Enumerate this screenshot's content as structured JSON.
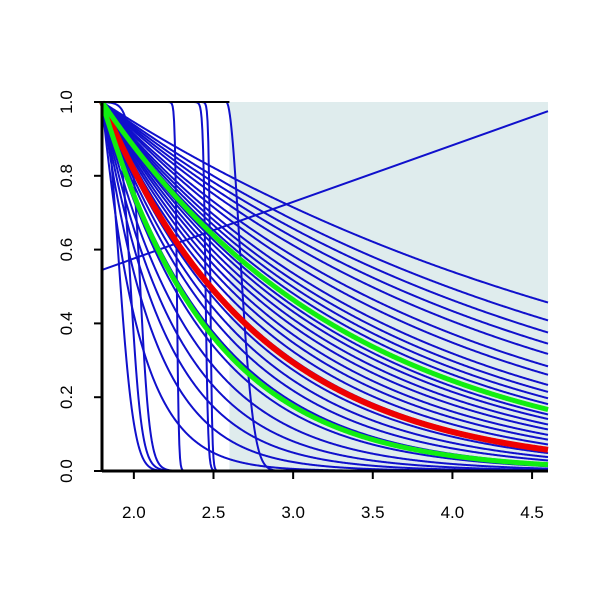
{
  "chart_data": {
    "type": "line",
    "title": "",
    "xlabel": "",
    "ylabel": "",
    "xlim": [
      1.8,
      4.6
    ],
    "ylim": [
      0.0,
      1.0
    ],
    "x_ticks": [
      "2.0",
      "2.5",
      "3.0",
      "3.5",
      "4.0",
      "4.5"
    ],
    "y_ticks": [
      "0.0",
      "0.2",
      "0.4",
      "0.6",
      "0.8",
      "1.0"
    ],
    "shaded_region": {
      "x_start": 2.6,
      "x_end": 4.6,
      "color": "#dfeced"
    },
    "colors": {
      "blue": "#1010cc",
      "red": "#ee0000",
      "green": "#11ee11",
      "axis": "#000000"
    },
    "series": [
      {
        "color": "blue",
        "kind": "exp",
        "x0": 1.8,
        "v": 0.28
      },
      {
        "color": "blue",
        "kind": "exp",
        "x0": 1.8,
        "v": 0.32
      },
      {
        "color": "blue",
        "kind": "exp",
        "x0": 1.8,
        "v": 0.35
      },
      {
        "color": "blue",
        "kind": "exp",
        "x0": 1.8,
        "v": 0.38
      },
      {
        "color": "blue",
        "kind": "exp",
        "x0": 1.8,
        "v": 0.41
      },
      {
        "color": "blue",
        "kind": "exp",
        "x0": 1.8,
        "v": 0.45
      },
      {
        "color": "blue",
        "kind": "exp",
        "x0": 1.8,
        "v": 0.48
      },
      {
        "color": "blue",
        "kind": "exp",
        "x0": 1.8,
        "v": 0.52
      },
      {
        "color": "blue",
        "kind": "exp",
        "x0": 1.8,
        "v": 0.55
      },
      {
        "color": "blue",
        "kind": "exp",
        "x0": 1.8,
        "v": 0.58
      },
      {
        "color": "blue",
        "kind": "exp",
        "x0": 1.8,
        "v": 0.61
      },
      {
        "color": "blue",
        "kind": "exp",
        "x0": 1.8,
        "v": 0.64
      },
      {
        "color": "blue",
        "kind": "exp",
        "x0": 1.8,
        "v": 0.67
      },
      {
        "color": "blue",
        "kind": "exp",
        "x0": 1.8,
        "v": 0.7
      },
      {
        "color": "blue",
        "kind": "exp",
        "x0": 1.8,
        "v": 0.74
      },
      {
        "color": "blue",
        "kind": "exp",
        "x0": 1.8,
        "v": 0.78
      },
      {
        "color": "blue",
        "kind": "exp",
        "x0": 1.8,
        "v": 0.83
      },
      {
        "color": "blue",
        "kind": "exp",
        "x0": 1.8,
        "v": 0.88
      },
      {
        "color": "blue",
        "kind": "exp",
        "x0": 1.8,
        "v": 0.94
      },
      {
        "color": "blue",
        "kind": "exp",
        "x0": 1.8,
        "v": 1.0
      },
      {
        "color": "blue",
        "kind": "exp",
        "x0": 1.8,
        "v": 1.08
      },
      {
        "color": "blue",
        "kind": "exp",
        "x0": 1.8,
        "v": 1.17
      },
      {
        "color": "blue",
        "kind": "exp",
        "x0": 1.8,
        "v": 1.27
      },
      {
        "color": "blue",
        "kind": "exp",
        "x0": 1.8,
        "v": 1.4
      },
      {
        "color": "blue",
        "kind": "exp",
        "x0": 1.8,
        "v": 1.55
      },
      {
        "color": "blue",
        "kind": "exp",
        "x0": 1.8,
        "v": 1.8
      },
      {
        "color": "blue",
        "kind": "exp",
        "x0": 1.8,
        "v": 2.1
      },
      {
        "color": "blue",
        "kind": "exp",
        "x0": 1.8,
        "v": 2.5
      },
      {
        "color": "blue",
        "kind": "exp",
        "x0": 1.8,
        "v": 3.1
      },
      {
        "color": "blue",
        "kind": "exp",
        "x0": 1.8,
        "v": 4.3
      },
      {
        "color": "blue",
        "kind": "gauss",
        "x0": 1.8,
        "s": 0.14
      },
      {
        "color": "blue",
        "kind": "logistic",
        "c": 1.98,
        "w": 0.035
      },
      {
        "color": "blue",
        "kind": "logistic",
        "c": 2.04,
        "w": 0.03
      },
      {
        "color": "blue",
        "kind": "logistic",
        "c": 2.27,
        "w": 0.006
      },
      {
        "color": "blue",
        "kind": "logistic",
        "c": 2.45,
        "w": 0.008
      },
      {
        "color": "blue",
        "kind": "logistic",
        "c": 2.48,
        "w": 0.006
      },
      {
        "color": "blue",
        "kind": "plateau",
        "c": 2.58,
        "s": 0.12
      },
      {
        "color": "blue",
        "kind": "linear",
        "x": [
          1.8,
          4.6
        ],
        "y": [
          0.545,
          0.975
        ]
      },
      {
        "color": "red",
        "kind": "exp",
        "x0": 1.8,
        "v": 1.02,
        "width": 6
      },
      {
        "color": "green",
        "kind": "exp",
        "x0": 1.8,
        "v": 0.64,
        "width": 5
      },
      {
        "color": "green",
        "kind": "exp",
        "x0": 1.8,
        "v": 1.45,
        "width": 5
      }
    ]
  }
}
